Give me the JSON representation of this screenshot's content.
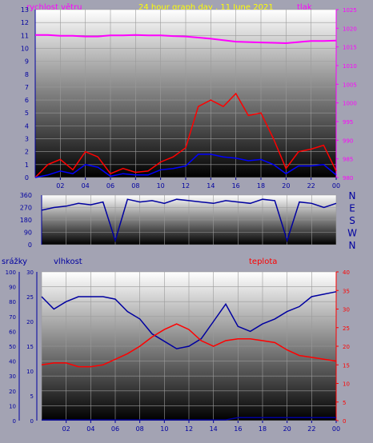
{
  "colors": {
    "background": "#a3a3b3",
    "axis_blue": "#0000a0",
    "axis_magenta": "#ff00ff",
    "axis_red": "#ff0000",
    "title_yellow": "#ffff00",
    "wind": "#ff0000",
    "wind_gust": "#0000ff",
    "pressure": "#ff00ff",
    "direction": "#0000a0",
    "humidity": "#0000a0",
    "temperature": "#ff0000",
    "rain": "#0000a0",
    "rain_marker": "#ffff00"
  },
  "header": {
    "title": "24 hour graph day , 11 June 2021",
    "wind_label": "rychlost větru",
    "pressure_label": "tlak"
  },
  "lower_header": {
    "rain_label": "srážky",
    "humidity_label": "vlhkost",
    "temp_label": "teplota"
  },
  "compass": [
    "N",
    "W",
    "S",
    "E",
    "N"
  ],
  "x_ticks": [
    "02",
    "04",
    "06",
    "08",
    "10",
    "12",
    "14",
    "16",
    "18",
    "20",
    "22",
    "00"
  ],
  "chart_data": [
    {
      "type": "line",
      "title": "24 hour graph day , 11 June 2021",
      "y_ticks_left": [
        "0",
        "1",
        "2",
        "3",
        "4",
        "5",
        "6",
        "7",
        "8",
        "9",
        "10",
        "11",
        "12",
        "13"
      ],
      "y_ticks_right": [
        "980",
        "985",
        "990",
        "995",
        "1000",
        "1005",
        "1010",
        "1015",
        "1020",
        "1025"
      ],
      "ylim_left": [
        0,
        13
      ],
      "ylim_right": [
        980,
        1025
      ],
      "x": [
        0,
        1,
        2,
        3,
        4,
        5,
        6,
        7,
        8,
        9,
        10,
        11,
        12,
        13,
        14,
        15,
        16,
        17,
        18,
        19,
        20,
        21,
        22,
        23,
        24
      ],
      "series": [
        {
          "name": "rychlost větru",
          "axis": "left",
          "values": [
            0,
            1,
            1.4,
            0.6,
            2,
            1.6,
            0.3,
            0.7,
            0.4,
            0.5,
            1.2,
            1.6,
            2.3,
            5.5,
            6,
            5.5,
            6.5,
            4.8,
            5,
            3,
            0.7,
            2,
            2.2,
            2.5,
            0.5
          ]
        },
        {
          "name": "",
          "axis": "left",
          "values": [
            0,
            0.2,
            0.5,
            0.3,
            1,
            0.8,
            0.1,
            0.3,
            0.2,
            0.2,
            0.6,
            0.7,
            0.9,
            1.8,
            1.8,
            1.6,
            1.5,
            1.3,
            1.4,
            1,
            0.3,
            0.9,
            0.9,
            1,
            0.2
          ]
        },
        {
          "name": "tlak",
          "axis": "right",
          "values": [
            1018.2,
            1018.2,
            1018,
            1018,
            1017.8,
            1017.8,
            1018.1,
            1018.1,
            1018.2,
            1018.1,
            1018.1,
            1017.9,
            1017.8,
            1017.5,
            1017.2,
            1016.8,
            1016.4,
            1016.3,
            1016.2,
            1016.1,
            1016,
            1016.3,
            1016.6,
            1016.6,
            1016.7
          ]
        }
      ]
    },
    {
      "type": "line",
      "y_ticks": [
        "0",
        "90",
        "180",
        "270",
        "360"
      ],
      "ylim": [
        0,
        360
      ],
      "x": [
        0,
        1,
        2,
        3,
        4,
        5,
        6,
        7,
        8,
        9,
        10,
        11,
        12,
        13,
        14,
        15,
        16,
        17,
        18,
        19,
        20,
        21,
        22,
        23,
        24
      ],
      "series": [
        {
          "name": "",
          "values": [
            250,
            270,
            280,
            300,
            290,
            310,
            30,
            330,
            310,
            320,
            300,
            330,
            320,
            310,
            300,
            320,
            310,
            300,
            330,
            320,
            30,
            310,
            300,
            270,
            300
          ]
        }
      ]
    },
    {
      "type": "line",
      "y_ticks_rain": [
        "0",
        "10",
        "20",
        "30",
        "40",
        "50",
        "60",
        "70",
        "80",
        "90",
        "100"
      ],
      "y_ticks_humidity": [
        "0",
        "5",
        "10",
        "15",
        "20",
        "25",
        "30"
      ],
      "y_ticks_temp": [
        "0",
        "5",
        "10",
        "15",
        "20",
        "25",
        "30",
        "35",
        "40"
      ],
      "ylim_rain": [
        0,
        100
      ],
      "ylim_humidity": [
        0,
        30
      ],
      "ylim_temp": [
        0,
        40
      ],
      "x": [
        0,
        1,
        2,
        3,
        4,
        5,
        6,
        7,
        8,
        9,
        10,
        11,
        12,
        13,
        14,
        15,
        16,
        17,
        18,
        19,
        20,
        21,
        22,
        23,
        24
      ],
      "series": [
        {
          "name": "vlhkost",
          "axis": "humidity",
          "values": [
            25,
            22.5,
            24,
            25,
            25,
            25,
            24.5,
            22,
            20.5,
            17.5,
            16,
            14.5,
            15,
            16.5,
            20,
            23.5,
            19,
            18,
            19.5,
            20.5,
            22,
            23,
            25,
            25.5,
            26
          ]
        },
        {
          "name": "teplota",
          "axis": "temp",
          "values": [
            15,
            15.5,
            15.5,
            14.5,
            14.5,
            15,
            16.5,
            18,
            20,
            22.5,
            24.5,
            26,
            24.5,
            21.5,
            20,
            21.5,
            22,
            22,
            21.5,
            21,
            19,
            17.5,
            17,
            16.5,
            16
          ]
        },
        {
          "name": "srážky",
          "axis": "rain",
          "values": [
            0.5,
            0.5,
            0.5,
            0.5,
            0.5,
            0.5,
            0.5,
            0.5,
            0.5,
            0.5,
            0.5,
            0.5,
            0.5,
            0.5,
            0.5,
            0.5,
            2,
            2,
            2,
            2,
            2,
            2,
            2,
            2,
            2
          ]
        }
      ]
    }
  ]
}
